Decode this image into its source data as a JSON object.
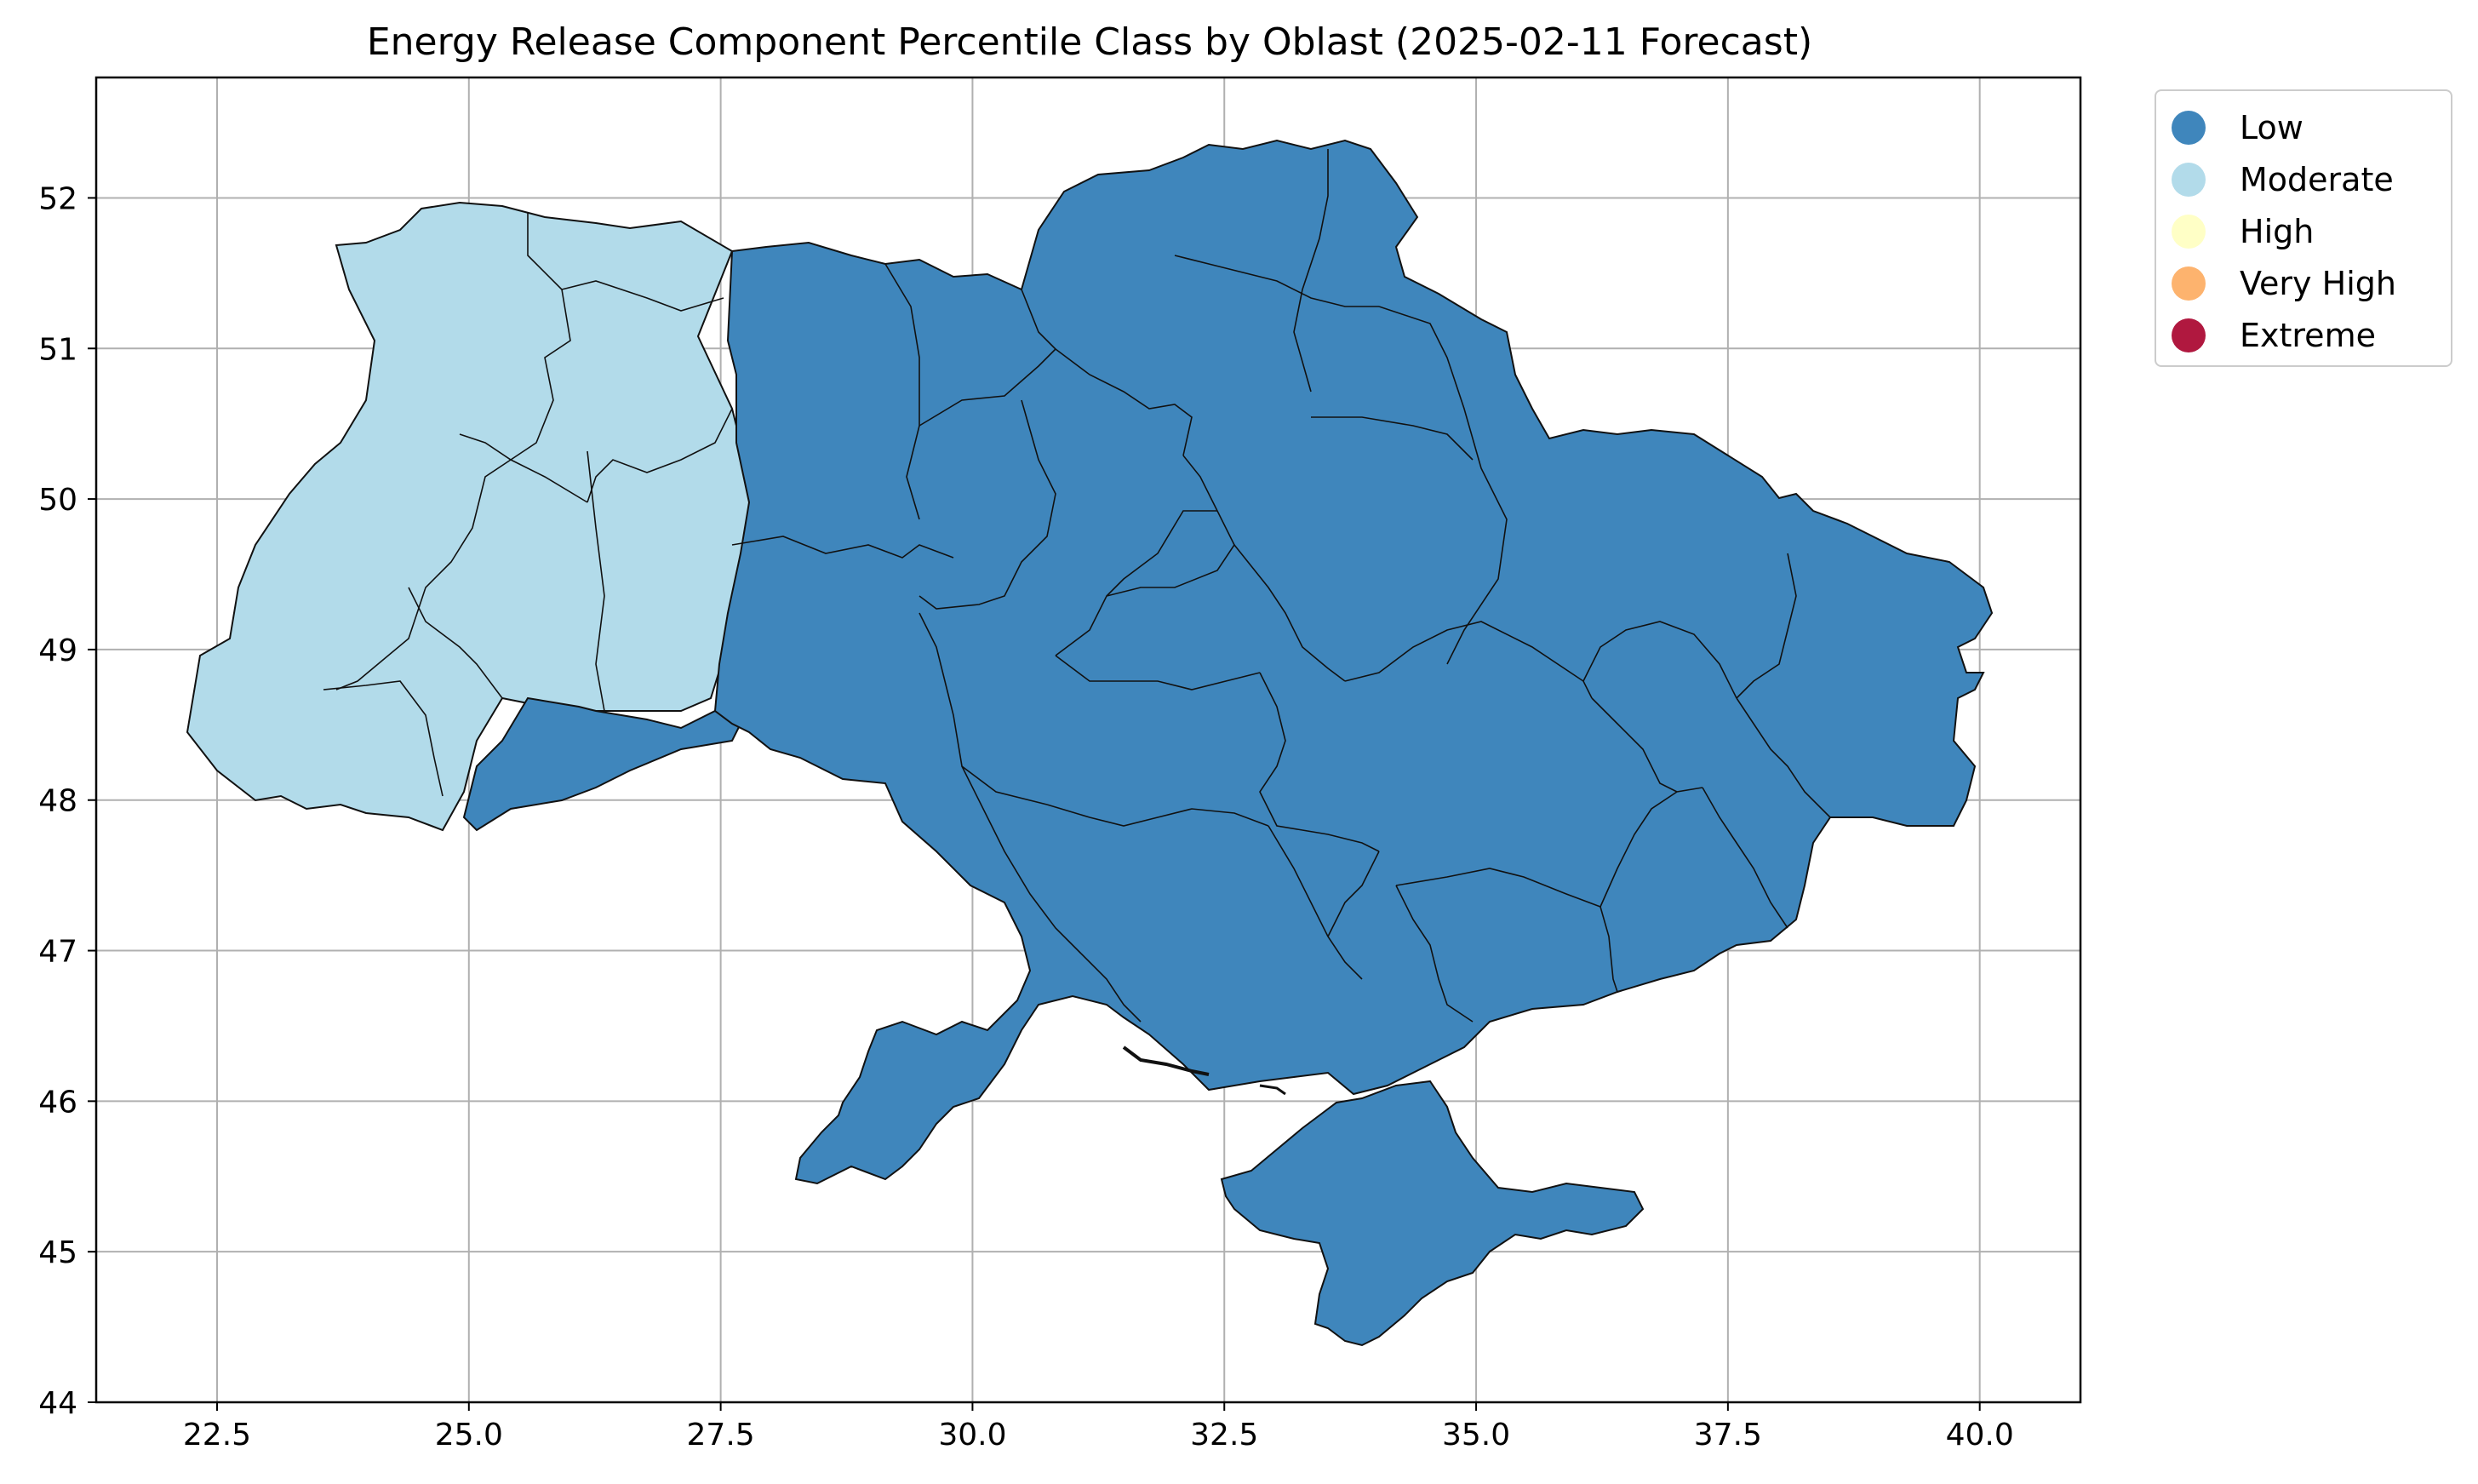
{
  "title": "Energy Release Component Percentile Class by Oblast (2025-02-11 Forecast)",
  "colors": {
    "Low": "#3f86bc",
    "Moderate": "#b2dbea",
    "High": "#ffffc6",
    "Very High": "#fdb36e",
    "Extreme": "#b0183f",
    "border": "#111111",
    "grid": "#b0b0b0"
  },
  "legend": {
    "placement": "upper-right, outside axes",
    "items": [
      {
        "label": "Low",
        "color": "#3f86bc"
      },
      {
        "label": "Moderate",
        "color": "#b2dbea"
      },
      {
        "label": "High",
        "color": "#ffffc6"
      },
      {
        "label": "Very High",
        "color": "#fdb36e"
      },
      {
        "label": "Extreme",
        "color": "#b0183f"
      }
    ]
  },
  "axes": {
    "xlim": [
      21.3,
      41.0
    ],
    "ylim": [
      44.0,
      52.8
    ],
    "xticks": [
      "22.5",
      "25.0",
      "27.5",
      "30.0",
      "32.5",
      "35.0",
      "37.5",
      "40.0"
    ],
    "yticks": [
      "44",
      "45",
      "46",
      "47",
      "48",
      "49",
      "50",
      "51",
      "52"
    ],
    "grid": true
  },
  "map": {
    "region": "Ukraine",
    "moderate_class_area": "western oblasts",
    "low_class_area": "central, northern, eastern and southern oblasts, Crimea"
  }
}
